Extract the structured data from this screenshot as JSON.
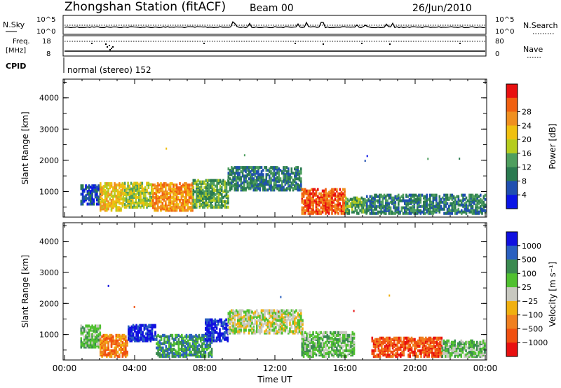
{
  "header": {
    "title": "Zhongshan Station (fitACF)",
    "beam": "Beam 00",
    "date": "26/Jun/2010"
  },
  "nsky_panel": {
    "left_label": "N.Sky",
    "right_label": "N.Search",
    "left_ticks": [
      "10^5",
      "10^0"
    ],
    "right_ticks": [
      "10^5",
      "10^0"
    ]
  },
  "freq_panel": {
    "left_label_1": "Freq.",
    "left_label_2": "[MHz]",
    "right_label": "Nave",
    "left_ticks": [
      "18",
      "8"
    ],
    "right_ticks": [
      "80",
      "0"
    ]
  },
  "cpid": {
    "label": "CPID",
    "text": "normal (stereo) 152"
  },
  "chart_data": [
    {
      "type": "heatmap",
      "name": "power",
      "ylabel": "Slant Range [km]",
      "ylim": [
        180,
        4600
      ],
      "yticks": [
        "1000",
        "2000",
        "3000",
        "4000"
      ],
      "colorbar_label": "Power [dB]",
      "colorbar_ticks": [
        "4",
        "8",
        "12",
        "16",
        "20",
        "24",
        "28"
      ],
      "colors": [
        "#0a14e6",
        "#1f4fb0",
        "#2a7a50",
        "#4e9e5e",
        "#b5cc1e",
        "#f0c010",
        "#f09020",
        "#f06010",
        "#e81010"
      ],
      "regions_hours_km": [
        {
          "t0": 0.9,
          "t1": 2.0,
          "r0": 600,
          "r1": 1200,
          "level": 1
        },
        {
          "t0": 2.0,
          "t1": 3.3,
          "r0": 400,
          "r1": 1300,
          "level": 5
        },
        {
          "t0": 3.3,
          "t1": 5.0,
          "r0": 500,
          "r1": 1300,
          "level": 4
        },
        {
          "t0": 5.0,
          "t1": 7.3,
          "r0": 400,
          "r1": 1300,
          "level": 6
        },
        {
          "t0": 7.3,
          "t1": 9.3,
          "r0": 500,
          "r1": 1400,
          "level": 3
        },
        {
          "t0": 9.3,
          "t1": 13.5,
          "r0": 1050,
          "r1": 1800,
          "level": 2
        },
        {
          "t0": 13.5,
          "t1": 16.0,
          "r0": 300,
          "r1": 1100,
          "level": 7
        },
        {
          "t0": 16.0,
          "t1": 17.2,
          "r0": 300,
          "r1": 800,
          "level": 3
        },
        {
          "t0": 17.2,
          "t1": 24.0,
          "r0": 300,
          "r1": 900,
          "level": 2
        }
      ]
    },
    {
      "type": "heatmap",
      "name": "velocity",
      "ylabel": "Slant Range [km]",
      "ylim": [
        180,
        4600
      ],
      "yticks": [
        "1000",
        "2000",
        "3000",
        "4000"
      ],
      "xlabel": "Time UT",
      "xticks": [
        "00:00",
        "04:00",
        "08:00",
        "12:00",
        "16:00",
        "20:00",
        "00:00"
      ],
      "xlim": [
        0,
        24
      ],
      "colorbar_label": "Velocity [m s⁻¹]",
      "colorbar_ticks": [
        "1000",
        "500",
        "100",
        "25",
        "−25",
        "−100",
        "−500",
        "−1000"
      ],
      "colors": [
        "#1010e0",
        "#2a60c0",
        "#3a8a50",
        "#50c030",
        "#c8c8c0",
        "#f0b010",
        "#f08020",
        "#f05010",
        "#e81010"
      ],
      "regions_hours_km": [
        {
          "t0": 0.9,
          "t1": 2.0,
          "r0": 600,
          "r1": 1300,
          "level": 3
        },
        {
          "t0": 2.0,
          "t1": 3.6,
          "r0": 300,
          "r1": 1000,
          "level": 6
        },
        {
          "t0": 3.6,
          "t1": 5.2,
          "r0": 800,
          "r1": 1300,
          "level": 0
        },
        {
          "t0": 5.2,
          "t1": 8.4,
          "r0": 300,
          "r1": 1000,
          "level": 2
        },
        {
          "t0": 8.0,
          "t1": 9.3,
          "r0": 800,
          "r1": 1500,
          "level": 0
        },
        {
          "t0": 9.3,
          "t1": 13.6,
          "r0": 1050,
          "r1": 1800,
          "level": 4
        },
        {
          "t0": 13.5,
          "t1": 16.5,
          "r0": 300,
          "r1": 1100,
          "level": 3
        },
        {
          "t0": 17.5,
          "t1": 21.5,
          "r0": 300,
          "r1": 900,
          "level": 7
        },
        {
          "t0": 21.5,
          "t1": 24.0,
          "r0": 300,
          "r1": 800,
          "level": 3
        }
      ]
    }
  ]
}
